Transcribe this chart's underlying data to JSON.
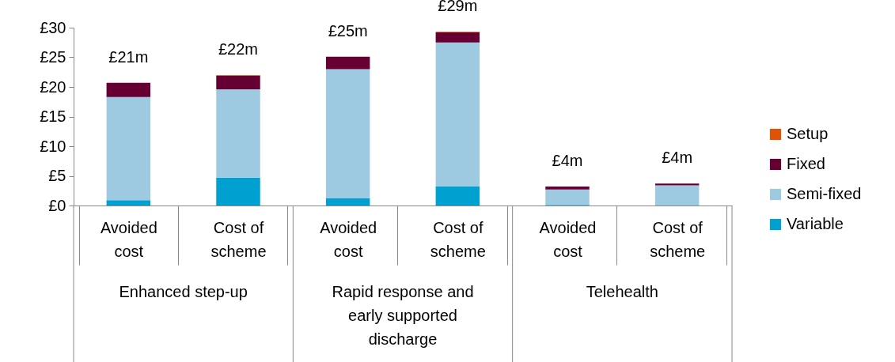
{
  "chart_data": {
    "type": "bar",
    "stacked": true,
    "categories": [
      "Avoided cost",
      "Cost of scheme",
      "Avoided cost",
      "Cost of scheme",
      "Avoided cost",
      "Cost of scheme"
    ],
    "annotations": [
      "Enhanced step-up",
      "Rapid response and early supported discharge",
      "Telehealth"
    ],
    "series": [
      {
        "name": "Variable",
        "color": "#00a0d0",
        "values": [
          0.9,
          4.7,
          1.2,
          3.2,
          0.1,
          0
        ]
      },
      {
        "name": "Semi-fixed",
        "color": "#9ecae1",
        "values": [
          17.4,
          14.9,
          21.8,
          24.3,
          2.6,
          3.4
        ]
      },
      {
        "name": "Fixed",
        "color": "#660033",
        "values": [
          2.4,
          2.3,
          2.1,
          1.7,
          0.5,
          0.3
        ]
      },
      {
        "name": "Setup",
        "color": "#e05206",
        "values": [
          0,
          0.1,
          0,
          0.1,
          0,
          0
        ]
      }
    ],
    "totals": [
      "£21m",
      "£22m",
      "£25m",
      "£29m",
      "£4m",
      "£4m"
    ],
    "ylim": [
      0,
      30
    ],
    "yticks": [
      {
        "value": 0,
        "label": "£0"
      },
      {
        "value": 5,
        "label": "£5"
      },
      {
        "value": 10,
        "label": "£10"
      },
      {
        "value": 15,
        "label": "£15"
      },
      {
        "value": 20,
        "label": "£20"
      },
      {
        "value": 25,
        "label": "£25"
      },
      {
        "value": 30,
        "label": "£30"
      }
    ],
    "legend": "right",
    "grid": false
  }
}
